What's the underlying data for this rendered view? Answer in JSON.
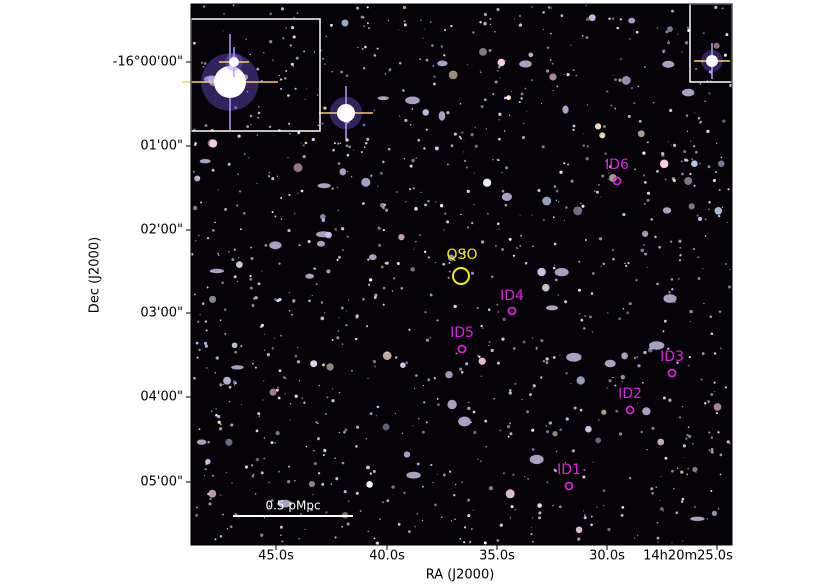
{
  "x_axis": {
    "label": "RA (J2000)",
    "ticks": [
      "45.0s",
      "40.0s",
      "35.0s",
      "30.0s",
      "14h20m25.0s"
    ]
  },
  "y_axis": {
    "label": "Dec (J2000)",
    "ticks": [
      "-16°00'00\"",
      "01'00\"",
      "02'00\"",
      "03'00\"",
      "04'00\"",
      "05'00\""
    ]
  },
  "annotations": {
    "qso": "QSO",
    "sources": [
      "ID1",
      "ID2",
      "ID3",
      "ID4",
      "ID5",
      "ID6"
    ]
  },
  "scale_bar": "0.5 pMpc"
}
